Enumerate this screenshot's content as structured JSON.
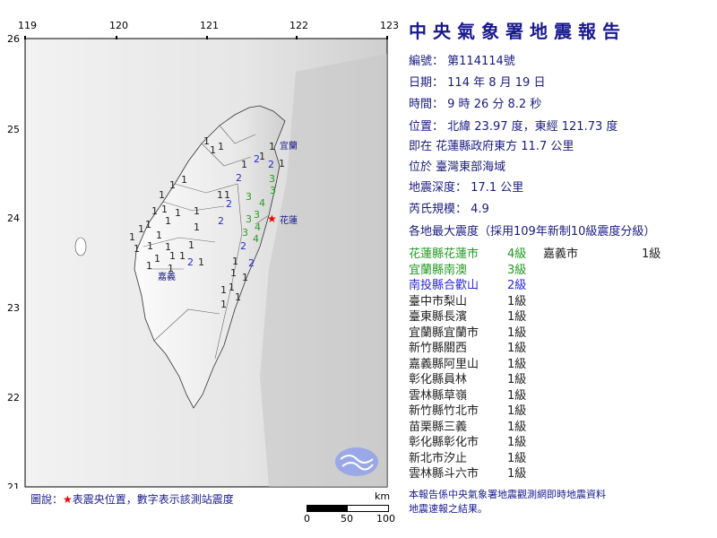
{
  "map": {
    "lon_ticks": [
      "119",
      "120",
      "121",
      "122",
      "123"
    ],
    "lat_ticks": [
      "26",
      "25",
      "24",
      "23",
      "22",
      "21"
    ],
    "place_labels": {
      "yilan": "宜蘭",
      "hualien": "花蓮",
      "chiayi": "嘉義"
    },
    "epicenter_icon": "red-star-icon",
    "intensity_colors": {
      "1": "#222222",
      "2": "#2a2ad0",
      "3": "#22a022",
      "4": "#22a022"
    },
    "station_values": [
      1,
      1,
      1,
      1,
      1,
      2,
      2,
      1,
      1,
      1,
      1,
      2,
      3,
      3,
      1,
      1,
      1,
      3,
      2,
      4,
      3,
      1,
      1,
      1,
      1,
      2,
      3,
      4,
      1,
      1,
      1,
      1,
      1,
      3,
      4,
      1,
      1,
      1,
      1,
      1,
      2,
      1,
      1,
      1,
      1,
      1,
      1,
      2,
      2,
      1,
      1,
      1,
      1,
      1,
      1,
      1
    ]
  },
  "legend": {
    "prefix": "圖說：",
    "star": "★",
    "text": "表震央位置，數字表示該測站震度"
  },
  "scale": {
    "unit": "km",
    "labels": [
      "0",
      "50",
      "100"
    ]
  },
  "report": {
    "title": "中央氣象署地震報告",
    "number_label": "編號：",
    "number": "第114114號",
    "date_label": "日期：",
    "date": "114 年 8 月 19 日",
    "time_label": "時間：",
    "time": "9 時 26 分 8.2 秒",
    "location_label": "位置：",
    "location": "北緯 23.97 度，東經 121.73 度",
    "relative": "即在  花蓮縣政府東方 11.7 公里",
    "region": "位於  臺灣東部海域",
    "depth_label": "地震深度：",
    "depth": "17.1 公里",
    "magnitude_label": "芮氏規模：",
    "magnitude": "4.9",
    "intensity_header": "各地最大震度（採用109年新制10級震度分級）",
    "intensities": [
      {
        "name": "花蓮縣花蓮市",
        "level": "4級",
        "color": "#229922"
      },
      {
        "name": "宜蘭縣南澳",
        "level": "3級",
        "color": "#229922"
      },
      {
        "name": "南投縣合歡山",
        "level": "2級",
        "color": "#2a2ad0"
      },
      {
        "name": "臺中市梨山",
        "level": "1級",
        "color": "#222222"
      },
      {
        "name": "臺東縣長濱",
        "level": "1級",
        "color": "#222222"
      },
      {
        "name": "宜蘭縣宜蘭市",
        "level": "1級",
        "color": "#222222"
      },
      {
        "name": "新竹縣關西",
        "level": "1級",
        "color": "#222222"
      },
      {
        "name": "嘉義縣阿里山",
        "level": "1級",
        "color": "#222222"
      },
      {
        "name": "彰化縣員林",
        "level": "1級",
        "color": "#222222"
      },
      {
        "name": "雲林縣草嶺",
        "level": "1級",
        "color": "#222222"
      },
      {
        "name": "新竹縣竹北市",
        "level": "1級",
        "color": "#222222"
      },
      {
        "name": "苗栗縣三義",
        "level": "1級",
        "color": "#222222"
      },
      {
        "name": "彰化縣彰化市",
        "level": "1級",
        "color": "#222222"
      },
      {
        "name": "新北市汐止",
        "level": "1級",
        "color": "#222222"
      },
      {
        "name": "雲林縣斗六市",
        "level": "1級",
        "color": "#222222"
      }
    ],
    "intensities_col2": [
      {
        "name": "嘉義市",
        "level": "1級",
        "color": "#222222"
      }
    ],
    "footer": [
      "本報告係中央氣象署地震觀測網即時地震資料",
      "地震速報之結果。"
    ]
  }
}
